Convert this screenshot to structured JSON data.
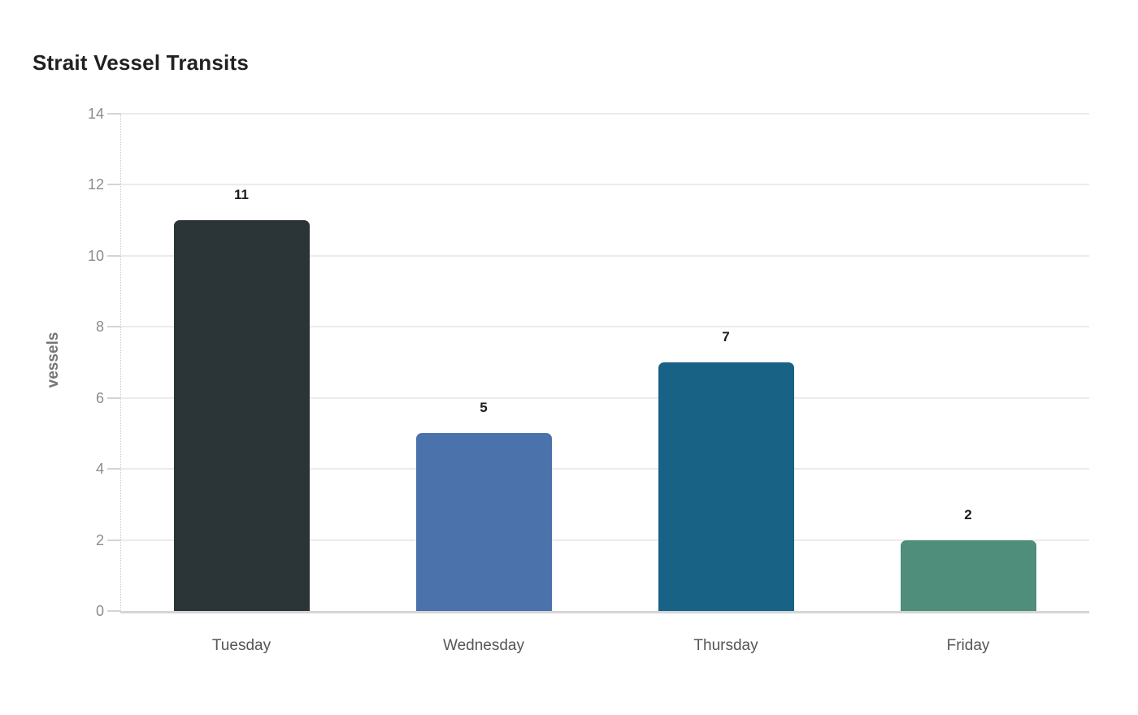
{
  "chart_data": {
    "type": "bar",
    "title": "Strait Vessel Transits",
    "xlabel": "",
    "ylabel": "vessels",
    "categories": [
      "Tuesday",
      "Wednesday",
      "Thursday",
      "Friday"
    ],
    "values": [
      11,
      5,
      7,
      2
    ],
    "value_labels": [
      "11",
      "5",
      "7",
      "2"
    ],
    "bar_colors": [
      "#2b3437",
      "#4b72aa",
      "#176285",
      "#4e8e7b"
    ],
    "ylim": [
      0,
      14
    ],
    "yticks": [
      0,
      2,
      4,
      6,
      8,
      10,
      12,
      14
    ],
    "ytick_labels": [
      "0",
      "2",
      "4",
      "6",
      "8",
      "10",
      "12",
      "14"
    ],
    "grid": true,
    "legend_position": "none",
    "colors": {
      "background": "#ffffff",
      "title_text": "#212121",
      "y_tick_text": "#8b8b8b",
      "x_tick_text": "#565656",
      "y_axis_title_text": "#757575",
      "value_label_text": "#1c1c1c",
      "gridline": "#ebebeb",
      "zero_line": "#d6d6d6",
      "axis_dotted_line": "#c9c9c9",
      "tick_dash": "#d4d4d4"
    }
  }
}
